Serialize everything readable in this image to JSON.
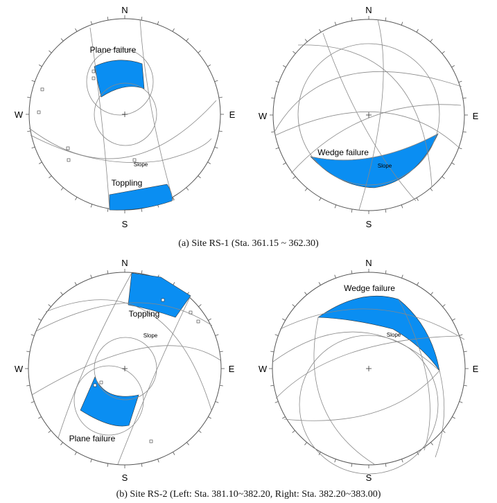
{
  "compass": {
    "n": "N",
    "s": "S",
    "e": "E",
    "w": "W"
  },
  "captions": {
    "a": "(a) Site RS-1 (Sta. 361.15 ~ 362.30)",
    "b": "(b) Site RS-2 (Left: Sta. 381.10~382.20, Right: Sta. 382.20~383.00)"
  },
  "nets": [
    {
      "id": "a-left",
      "labels": {
        "plane": "Plane failure",
        "toppling": "Toppling",
        "slope": "Slope"
      }
    },
    {
      "id": "a-right",
      "labels": {
        "wedge": "Wedge failure",
        "slope": "Slope"
      }
    },
    {
      "id": "b-left",
      "labels": {
        "plane": "Plane failure",
        "toppling": "Toppling",
        "slope": "Slope"
      }
    },
    {
      "id": "b-right",
      "labels": {
        "wedge": "Wedge failure",
        "slope": "Slope"
      }
    }
  ],
  "colors": {
    "fill": "#0a8ef2",
    "line": "#888888",
    "rim": "#555555"
  }
}
